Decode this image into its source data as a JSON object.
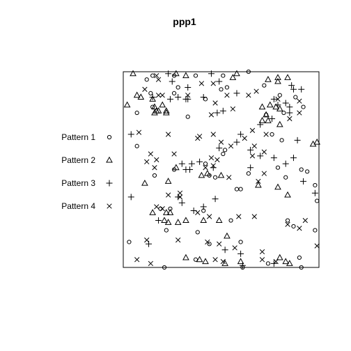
{
  "chart_data": {
    "type": "scatter",
    "title": "ppp1",
    "xlabel": "",
    "ylabel": "",
    "xlim": [
      0,
      1
    ],
    "ylim": [
      0,
      1
    ],
    "axes_drawn": false,
    "window": "square",
    "legend_position": "left",
    "series": [
      {
        "name": "Pattern 1",
        "symbol": "circle",
        "points": [
          [
            0.15,
            0.98
          ],
          [
            0.12,
            0.96
          ],
          [
            0.26,
            0.98
          ],
          [
            0.37,
            0.98
          ],
          [
            0.51,
            0.98
          ],
          [
            0.64,
            1.0
          ],
          [
            0.28,
            0.92
          ],
          [
            0.5,
            0.91
          ],
          [
            0.53,
            0.92
          ],
          [
            0.14,
            0.89
          ],
          [
            0.26,
            0.89
          ],
          [
            0.42,
            0.86
          ],
          [
            0.72,
            0.93
          ],
          [
            0.8,
            0.88
          ],
          [
            0.88,
            0.87
          ],
          [
            0.92,
            0.82
          ],
          [
            0.07,
            0.79
          ],
          [
            0.15,
            0.82
          ],
          [
            0.33,
            0.77
          ],
          [
            0.73,
            0.78
          ],
          [
            0.82,
            0.79
          ],
          [
            0.76,
            0.68
          ],
          [
            0.81,
            0.65
          ],
          [
            0.07,
            0.62
          ],
          [
            0.52,
            0.6
          ],
          [
            0.51,
            0.58
          ],
          [
            0.26,
            0.5
          ],
          [
            0.42,
            0.53
          ],
          [
            0.44,
            0.47
          ],
          [
            0.64,
            0.48
          ],
          [
            0.79,
            0.51
          ],
          [
            0.91,
            0.5
          ],
          [
            0.94,
            0.49
          ],
          [
            0.16,
            0.47
          ],
          [
            0.47,
            0.46
          ],
          [
            0.58,
            0.4
          ],
          [
            0.6,
            0.4
          ],
          [
            0.83,
            0.46
          ],
          [
            0.98,
            0.42
          ],
          [
            0.99,
            0.34
          ],
          [
            0.19,
            0.3
          ],
          [
            0.24,
            0.3
          ],
          [
            0.41,
            0.29
          ],
          [
            0.55,
            0.24
          ],
          [
            0.84,
            0.24
          ],
          [
            0.87,
            0.21
          ],
          [
            0.98,
            0.19
          ],
          [
            0.03,
            0.13
          ],
          [
            0.22,
            0.19
          ],
          [
            0.44,
            0.12
          ],
          [
            0.6,
            0.13
          ],
          [
            0.21,
            0.0
          ],
          [
            0.37,
            0.04
          ],
          [
            0.61,
            0.0
          ],
          [
            0.74,
            0.02
          ],
          [
            0.9,
            0.05
          ],
          [
            0.91,
            0.0
          ],
          [
            0.38,
            0.18
          ]
        ]
      },
      {
        "name": "Pattern 2",
        "symbol": "triangle",
        "points": [
          [
            0.05,
            0.99
          ],
          [
            0.27,
            0.99
          ],
          [
            0.32,
            0.98
          ],
          [
            0.56,
            0.97
          ],
          [
            0.58,
            0.99
          ],
          [
            0.84,
            0.97
          ],
          [
            0.74,
            0.96
          ],
          [
            0.79,
            0.95
          ],
          [
            0.79,
            0.97
          ],
          [
            0.07,
            0.88
          ],
          [
            0.09,
            0.87
          ],
          [
            0.15,
            0.86
          ],
          [
            0.16,
            0.82
          ],
          [
            0.17,
            0.8
          ],
          [
            0.18,
            0.8
          ],
          [
            0.2,
            0.83
          ],
          [
            0.22,
            0.8
          ],
          [
            0.16,
            0.79
          ],
          [
            0.22,
            0.79
          ],
          [
            0.02,
            0.83
          ],
          [
            0.71,
            0.82
          ],
          [
            0.75,
            0.83
          ],
          [
            0.78,
            0.82
          ],
          [
            0.8,
            0.81
          ],
          [
            0.73,
            0.78
          ],
          [
            0.71,
            0.75
          ],
          [
            0.74,
            0.75
          ],
          [
            0.8,
            0.73
          ],
          [
            0.99,
            0.64
          ],
          [
            0.97,
            0.63
          ],
          [
            0.27,
            0.51
          ],
          [
            0.4,
            0.47
          ],
          [
            0.43,
            0.48
          ],
          [
            0.5,
            0.47
          ],
          [
            0.11,
            0.43
          ],
          [
            0.23,
            0.44
          ],
          [
            0.69,
            0.42
          ],
          [
            0.79,
            0.41
          ],
          [
            0.84,
            0.37
          ],
          [
            0.15,
            0.28
          ],
          [
            0.22,
            0.28
          ],
          [
            0.24,
            0.28
          ],
          [
            0.21,
            0.24
          ],
          [
            0.23,
            0.23
          ],
          [
            0.28,
            0.23
          ],
          [
            0.32,
            0.24
          ],
          [
            0.41,
            0.24
          ],
          [
            0.49,
            0.24
          ],
          [
            0.53,
            0.16
          ],
          [
            0.32,
            0.05
          ],
          [
            0.39,
            0.04
          ],
          [
            0.42,
            0.03
          ],
          [
            0.52,
            0.02
          ],
          [
            0.6,
            0.03
          ],
          [
            0.8,
            0.05
          ],
          [
            0.83,
            0.03
          ],
          [
            0.85,
            0.02
          ]
        ]
      },
      {
        "name": "Pattern 3",
        "symbol": "plus",
        "points": [
          [
            0.23,
            0.99
          ],
          [
            0.25,
            0.95
          ],
          [
            0.33,
            0.92
          ],
          [
            0.45,
            0.99
          ],
          [
            0.49,
            0.95
          ],
          [
            0.58,
            0.89
          ],
          [
            0.86,
            0.93
          ],
          [
            0.91,
            0.91
          ],
          [
            0.87,
            0.91
          ],
          [
            0.15,
            0.87
          ],
          [
            0.24,
            0.86
          ],
          [
            0.28,
            0.87
          ],
          [
            0.32,
            0.86
          ],
          [
            0.41,
            0.87
          ],
          [
            0.48,
            0.79
          ],
          [
            0.51,
            0.8
          ],
          [
            0.33,
            0.86
          ],
          [
            0.79,
            0.83
          ],
          [
            0.77,
            0.86
          ],
          [
            0.83,
            0.84
          ],
          [
            0.85,
            0.82
          ],
          [
            0.85,
            0.79
          ],
          [
            0.7,
            0.73
          ],
          [
            0.76,
            0.76
          ],
          [
            0.04,
            0.68
          ],
          [
            0.6,
            0.68
          ],
          [
            0.58,
            0.64
          ],
          [
            0.49,
            0.61
          ],
          [
            0.65,
            0.6
          ],
          [
            0.7,
            0.57
          ],
          [
            0.77,
            0.56
          ],
          [
            0.87,
            0.56
          ],
          [
            0.89,
            0.65
          ],
          [
            0.3,
            0.53
          ],
          [
            0.35,
            0.53
          ],
          [
            0.39,
            0.54
          ],
          [
            0.46,
            0.51
          ],
          [
            0.65,
            0.51
          ],
          [
            0.32,
            0.5
          ],
          [
            0.34,
            0.5
          ],
          [
            0.83,
            0.53
          ],
          [
            0.92,
            0.44
          ],
          [
            0.98,
            0.38
          ],
          [
            0.04,
            0.36
          ],
          [
            0.28,
            0.36
          ],
          [
            0.3,
            0.33
          ],
          [
            0.36,
            0.29
          ],
          [
            0.41,
            0.31
          ],
          [
            0.47,
            0.35
          ],
          [
            0.18,
            0.24
          ],
          [
            0.13,
            0.12
          ],
          [
            0.52,
            0.09
          ],
          [
            0.6,
            0.07
          ],
          [
            0.61,
            0.01
          ],
          [
            0.77,
            0.02
          ]
        ]
      },
      {
        "name": "Pattern 4",
        "symbol": "cross",
        "points": [
          [
            0.17,
            0.98
          ],
          [
            0.18,
            0.96
          ],
          [
            0.11,
            0.91
          ],
          [
            0.18,
            0.88
          ],
          [
            0.2,
            0.88
          ],
          [
            0.33,
            0.88
          ],
          [
            0.4,
            0.94
          ],
          [
            0.46,
            0.94
          ],
          [
            0.53,
            0.88
          ],
          [
            0.64,
            0.88
          ],
          [
            0.68,
            0.9
          ],
          [
            0.56,
            0.81
          ],
          [
            0.45,
            0.78
          ],
          [
            0.47,
            0.84
          ],
          [
            0.79,
            0.86
          ],
          [
            0.9,
            0.85
          ],
          [
            0.85,
            0.76
          ],
          [
            0.9,
            0.79
          ],
          [
            0.08,
            0.69
          ],
          [
            0.23,
            0.68
          ],
          [
            0.38,
            0.66
          ],
          [
            0.39,
            0.67
          ],
          [
            0.46,
            0.68
          ],
          [
            0.62,
            0.66
          ],
          [
            0.66,
            0.7
          ],
          [
            0.73,
            0.68
          ],
          [
            0.67,
            0.62
          ],
          [
            0.5,
            0.64
          ],
          [
            0.55,
            0.62
          ],
          [
            0.45,
            0.56
          ],
          [
            0.48,
            0.55
          ],
          [
            0.14,
            0.58
          ],
          [
            0.26,
            0.58
          ],
          [
            0.46,
            0.52
          ],
          [
            0.72,
            0.59
          ],
          [
            0.17,
            0.55
          ],
          [
            0.12,
            0.54
          ],
          [
            0.16,
            0.51
          ],
          [
            0.42,
            0.51
          ],
          [
            0.66,
            0.57
          ],
          [
            0.72,
            0.48
          ],
          [
            0.69,
            0.44
          ],
          [
            0.54,
            0.46
          ],
          [
            0.23,
            0.37
          ],
          [
            0.29,
            0.36
          ],
          [
            0.29,
            0.38
          ],
          [
            0.17,
            0.31
          ],
          [
            0.2,
            0.3
          ],
          [
            0.38,
            0.28
          ],
          [
            0.44,
            0.26
          ],
          [
            0.59,
            0.26
          ],
          [
            0.67,
            0.26
          ],
          [
            0.93,
            0.24
          ],
          [
            0.84,
            0.22
          ],
          [
            0.9,
            0.2
          ],
          [
            0.12,
            0.14
          ],
          [
            0.28,
            0.14
          ],
          [
            0.43,
            0.13
          ],
          [
            0.49,
            0.12
          ],
          [
            0.57,
            0.1
          ],
          [
            0.71,
            0.08
          ],
          [
            0.07,
            0.04
          ],
          [
            0.14,
            0.02
          ],
          [
            0.47,
            0.04
          ],
          [
            0.51,
            0.03
          ],
          [
            0.71,
            0.04
          ],
          [
            0.78,
            0.03
          ],
          [
            0.99,
            0.11
          ]
        ]
      }
    ]
  }
}
